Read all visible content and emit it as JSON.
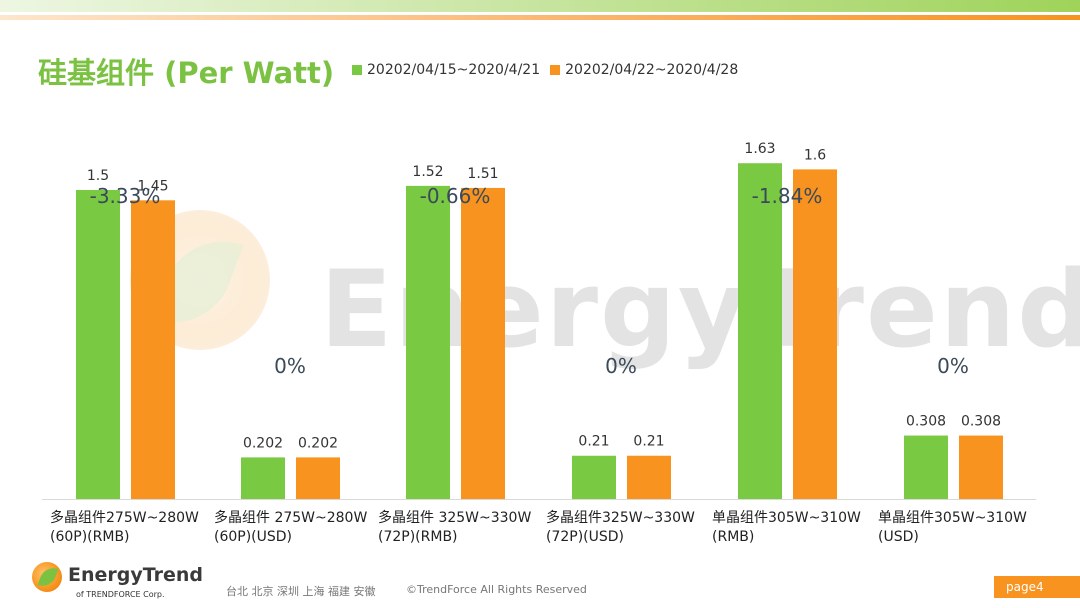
{
  "colors": {
    "series1": "#7ac943",
    "series2": "#f7931e",
    "title": "#7cc242",
    "axis": "#d9d9d9"
  },
  "watermark": {
    "text": "EnergyTrend"
  },
  "footer": {
    "logo_text": "EnergyTrend",
    "logo_sub": "of TRENDFORCE Corp.",
    "cities": "台北 北京 深圳 上海 福建 安徽",
    "copyright": "©TrendForce All Rights Reserved",
    "page": "page4"
  },
  "chart_data": {
    "type": "bar",
    "title": "硅基组件 (Per Watt)",
    "legend_position": "top",
    "grid": false,
    "categories": [
      "多晶组件275W~280W (60P)(RMB)",
      "多晶组件 275W~280W (60P)(USD)",
      "多晶组件 325W~330W (72P)(RMB)",
      "多晶组件325W~330W (72P)(USD)",
      "单晶组件305W~310W (RMB)",
      "单晶组件305W~310W (USD)"
    ],
    "series": [
      {
        "name": "20202/04/15~2020/4/21",
        "values": [
          1.5,
          0.202,
          1.52,
          0.21,
          1.63,
          0.308
        ]
      },
      {
        "name": "20202/04/22~2020/4/28",
        "values": [
          1.45,
          0.202,
          1.51,
          0.21,
          1.6,
          0.308
        ]
      }
    ],
    "value_labels": [
      [
        "1.5",
        "0.202",
        "1.52",
        "0.21",
        "1.63",
        "0.308"
      ],
      [
        "1.45",
        "0.202",
        "1.51",
        "0.21",
        "1.6",
        "0.308"
      ]
    ],
    "change_labels": [
      "-3.33%",
      "0%",
      "-0.66%",
      "0%",
      "-1.84%",
      "0%"
    ],
    "ylim": [
      0,
      1.7
    ]
  }
}
